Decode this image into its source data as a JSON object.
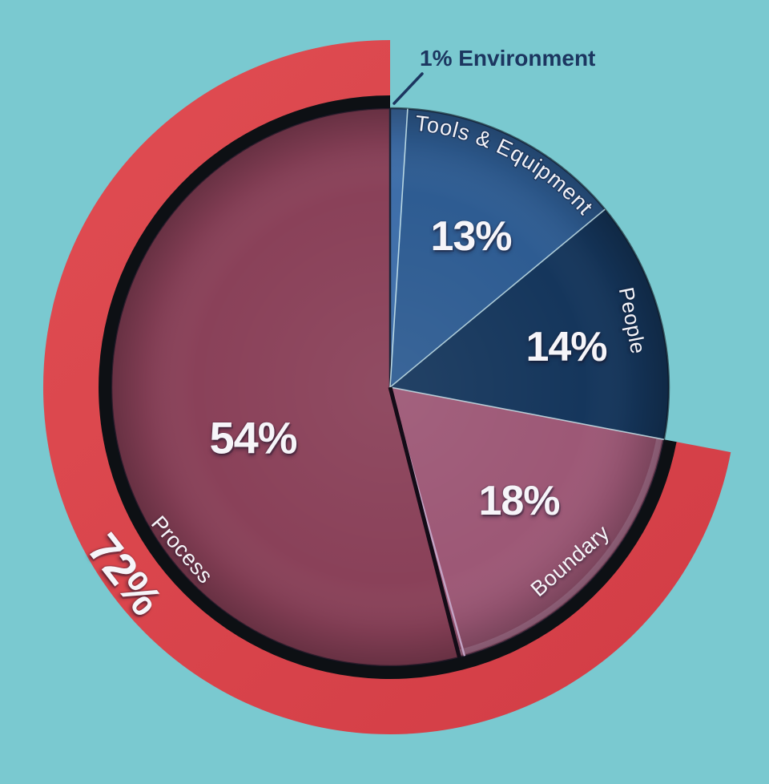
{
  "chart_data": {
    "type": "pie",
    "title": "",
    "unit": "%",
    "direction": "clockwise",
    "start_angle_deg": 0,
    "legend_position": "none",
    "background": "#7ac9d0",
    "slices": [
      {
        "label": "Environment",
        "value": 1,
        "display": "1% Environment",
        "color": "#3e6ea9"
      },
      {
        "label": "Tools & Equipment",
        "value": 13,
        "display": "13%",
        "color": "#2e5c92"
      },
      {
        "label": "People",
        "value": 14,
        "display": "14%",
        "color": "#15365c"
      },
      {
        "label": "Boundary",
        "value": 18,
        "display": "18%",
        "color": "#9d5876"
      },
      {
        "label": "Process",
        "value": 54,
        "display": "54%",
        "color": "#8a4159"
      }
    ],
    "outer_ring": {
      "display": "72%",
      "value": 72,
      "covers": [
        "Boundary",
        "Process"
      ],
      "color": "#d8434b"
    },
    "callout_color": "#1c3660"
  }
}
